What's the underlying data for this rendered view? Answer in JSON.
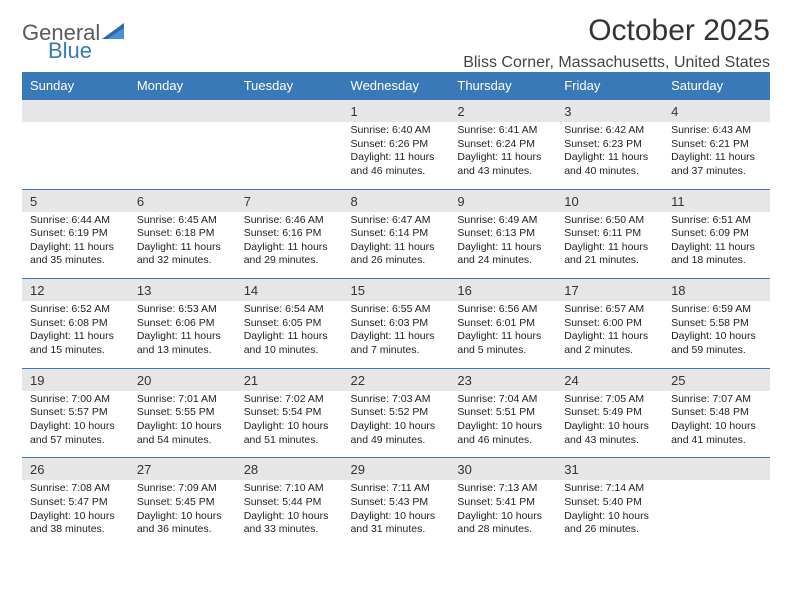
{
  "brand": {
    "general": "General",
    "blue": "Blue"
  },
  "title": "October 2025",
  "location": "Bliss Corner, Massachusetts, United States",
  "colors": {
    "header_bg": "#3a79b7",
    "header_text": "#ffffff",
    "daynum_bg": "#e6e6e6",
    "rule": "#3a79b7",
    "page_bg": "#ffffff",
    "body_text": "#222222",
    "title_text": "#333333",
    "logo_gray": "#5a5a5a",
    "logo_blue": "#3a79b7"
  },
  "daynames": [
    "Sunday",
    "Monday",
    "Tuesday",
    "Wednesday",
    "Thursday",
    "Friday",
    "Saturday"
  ],
  "weeks": [
    [
      {
        "n": "",
        "t": ""
      },
      {
        "n": "",
        "t": ""
      },
      {
        "n": "",
        "t": ""
      },
      {
        "n": "1",
        "t": "Sunrise: 6:40 AM\nSunset: 6:26 PM\nDaylight: 11 hours and 46 minutes."
      },
      {
        "n": "2",
        "t": "Sunrise: 6:41 AM\nSunset: 6:24 PM\nDaylight: 11 hours and 43 minutes."
      },
      {
        "n": "3",
        "t": "Sunrise: 6:42 AM\nSunset: 6:23 PM\nDaylight: 11 hours and 40 minutes."
      },
      {
        "n": "4",
        "t": "Sunrise: 6:43 AM\nSunset: 6:21 PM\nDaylight: 11 hours and 37 minutes."
      }
    ],
    [
      {
        "n": "5",
        "t": "Sunrise: 6:44 AM\nSunset: 6:19 PM\nDaylight: 11 hours and 35 minutes."
      },
      {
        "n": "6",
        "t": "Sunrise: 6:45 AM\nSunset: 6:18 PM\nDaylight: 11 hours and 32 minutes."
      },
      {
        "n": "7",
        "t": "Sunrise: 6:46 AM\nSunset: 6:16 PM\nDaylight: 11 hours and 29 minutes."
      },
      {
        "n": "8",
        "t": "Sunrise: 6:47 AM\nSunset: 6:14 PM\nDaylight: 11 hours and 26 minutes."
      },
      {
        "n": "9",
        "t": "Sunrise: 6:49 AM\nSunset: 6:13 PM\nDaylight: 11 hours and 24 minutes."
      },
      {
        "n": "10",
        "t": "Sunrise: 6:50 AM\nSunset: 6:11 PM\nDaylight: 11 hours and 21 minutes."
      },
      {
        "n": "11",
        "t": "Sunrise: 6:51 AM\nSunset: 6:09 PM\nDaylight: 11 hours and 18 minutes."
      }
    ],
    [
      {
        "n": "12",
        "t": "Sunrise: 6:52 AM\nSunset: 6:08 PM\nDaylight: 11 hours and 15 minutes."
      },
      {
        "n": "13",
        "t": "Sunrise: 6:53 AM\nSunset: 6:06 PM\nDaylight: 11 hours and 13 minutes."
      },
      {
        "n": "14",
        "t": "Sunrise: 6:54 AM\nSunset: 6:05 PM\nDaylight: 11 hours and 10 minutes."
      },
      {
        "n": "15",
        "t": "Sunrise: 6:55 AM\nSunset: 6:03 PM\nDaylight: 11 hours and 7 minutes."
      },
      {
        "n": "16",
        "t": "Sunrise: 6:56 AM\nSunset: 6:01 PM\nDaylight: 11 hours and 5 minutes."
      },
      {
        "n": "17",
        "t": "Sunrise: 6:57 AM\nSunset: 6:00 PM\nDaylight: 11 hours and 2 minutes."
      },
      {
        "n": "18",
        "t": "Sunrise: 6:59 AM\nSunset: 5:58 PM\nDaylight: 10 hours and 59 minutes."
      }
    ],
    [
      {
        "n": "19",
        "t": "Sunrise: 7:00 AM\nSunset: 5:57 PM\nDaylight: 10 hours and 57 minutes."
      },
      {
        "n": "20",
        "t": "Sunrise: 7:01 AM\nSunset: 5:55 PM\nDaylight: 10 hours and 54 minutes."
      },
      {
        "n": "21",
        "t": "Sunrise: 7:02 AM\nSunset: 5:54 PM\nDaylight: 10 hours and 51 minutes."
      },
      {
        "n": "22",
        "t": "Sunrise: 7:03 AM\nSunset: 5:52 PM\nDaylight: 10 hours and 49 minutes."
      },
      {
        "n": "23",
        "t": "Sunrise: 7:04 AM\nSunset: 5:51 PM\nDaylight: 10 hours and 46 minutes."
      },
      {
        "n": "24",
        "t": "Sunrise: 7:05 AM\nSunset: 5:49 PM\nDaylight: 10 hours and 43 minutes."
      },
      {
        "n": "25",
        "t": "Sunrise: 7:07 AM\nSunset: 5:48 PM\nDaylight: 10 hours and 41 minutes."
      }
    ],
    [
      {
        "n": "26",
        "t": "Sunrise: 7:08 AM\nSunset: 5:47 PM\nDaylight: 10 hours and 38 minutes."
      },
      {
        "n": "27",
        "t": "Sunrise: 7:09 AM\nSunset: 5:45 PM\nDaylight: 10 hours and 36 minutes."
      },
      {
        "n": "28",
        "t": "Sunrise: 7:10 AM\nSunset: 5:44 PM\nDaylight: 10 hours and 33 minutes."
      },
      {
        "n": "29",
        "t": "Sunrise: 7:11 AM\nSunset: 5:43 PM\nDaylight: 10 hours and 31 minutes."
      },
      {
        "n": "30",
        "t": "Sunrise: 7:13 AM\nSunset: 5:41 PM\nDaylight: 10 hours and 28 minutes."
      },
      {
        "n": "31",
        "t": "Sunrise: 7:14 AM\nSunset: 5:40 PM\nDaylight: 10 hours and 26 minutes."
      },
      {
        "n": "",
        "t": ""
      }
    ]
  ]
}
